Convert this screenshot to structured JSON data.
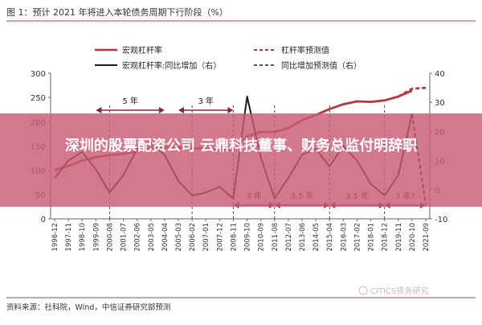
{
  "figure_title": "图 1：预计 2021 年将进入本轮债务周期下行阶段（%）",
  "headline": "深圳的股票配资公司 云鼎科技董事、财务总监付明辞职",
  "source": "资料来源：社科院，Wind，中信证券研究部预测",
  "watermark": "CITICS债务研究",
  "colors": {
    "leverage": "#b8343f",
    "yoy": "#1a1a1a",
    "banner": "#c95c74",
    "arrow": "#7a2a4a",
    "grid": "#d0d0d0"
  },
  "chart_data": {
    "type": "line",
    "title": "预计 2021 年将进入本轮债务周期下行阶段（%）",
    "x_ticks": [
      "1996-12",
      "1997-11",
      "1998-10",
      "1999-09",
      "2000-08",
      "2001-07",
      "2002-06",
      "2003-05",
      "2004-04",
      "2005-03",
      "2006-02",
      "2007-01",
      "2007-12",
      "2008-11",
      "2009-10",
      "2010-09",
      "2011-08",
      "2012-07",
      "2013-06",
      "2014-05",
      "2015-04",
      "2016-03",
      "2017-02",
      "2018-01",
      "2018-12",
      "2019-11",
      "2020-10",
      "2021-09"
    ],
    "y_left": {
      "lim": [
        0,
        300
      ],
      "ticks": [
        0,
        50,
        100,
        150,
        200,
        250,
        300
      ]
    },
    "y_right": {
      "lim": [
        -10,
        40
      ],
      "ticks": [
        -10,
        0,
        10,
        20,
        30,
        40
      ]
    },
    "legend": [
      "宏观杠杆率",
      "杠杆率预测值",
      "宏观杠杆率:同比增加（右）",
      "同比增加预测值（右）"
    ],
    "series": [
      {
        "name": "宏观杠杆率",
        "axis": "left",
        "style": "solid",
        "points": [
          [
            "1996-12",
            100
          ],
          [
            "1997-11",
            109
          ],
          [
            "1998-10",
            120
          ],
          [
            "1999-09",
            127
          ],
          [
            "2000-08",
            131
          ],
          [
            "2001-07",
            134
          ],
          [
            "2002-06",
            139
          ],
          [
            "2003-05",
            146
          ],
          [
            "2004-04",
            147
          ],
          [
            "2005-03",
            147
          ],
          [
            "2006-02",
            145
          ],
          [
            "2007-01",
            145
          ],
          [
            "2007-12",
            141
          ],
          [
            "2008-11",
            141
          ],
          [
            "2009-10",
            170
          ],
          [
            "2010-09",
            179
          ],
          [
            "2011-08",
            179
          ],
          [
            "2012-07",
            187
          ],
          [
            "2013-06",
            203
          ],
          [
            "2014-05",
            214
          ],
          [
            "2015-04",
            226
          ],
          [
            "2016-03",
            236
          ],
          [
            "2017-02",
            242
          ],
          [
            "2018-01",
            241
          ],
          [
            "2018-12",
            244
          ],
          [
            "2019-11",
            252
          ],
          [
            "2020-10",
            264
          ]
        ]
      },
      {
        "name": "杠杆率预测值",
        "axis": "left",
        "style": "dashed",
        "points": [
          [
            "2019-11",
            252
          ],
          [
            "2020-10",
            268
          ],
          [
            "2021-09",
            270
          ]
        ]
      },
      {
        "name": "宏观杠杆率:同比增加（右）",
        "axis": "right",
        "style": "solid",
        "points": [
          [
            "1996-12",
            4
          ],
          [
            "1997-11",
            10
          ],
          [
            "1998-10",
            13
          ],
          [
            "1999-09",
            7
          ],
          [
            "2000-08",
            -1
          ],
          [
            "2001-07",
            5
          ],
          [
            "2002-06",
            14
          ],
          [
            "2003-05",
            16
          ],
          [
            "2004-04",
            12
          ],
          [
            "2005-03",
            3
          ],
          [
            "2006-02",
            -2
          ],
          [
            "2007-01",
            -1
          ],
          [
            "2007-12",
            1
          ],
          [
            "2008-11",
            -3
          ],
          [
            "2009-10",
            32
          ],
          [
            "2010-09",
            11
          ],
          [
            "2011-08",
            -3
          ],
          [
            "2012-07",
            4
          ],
          [
            "2013-06",
            12
          ],
          [
            "2014-05",
            14
          ],
          [
            "2015-04",
            8
          ],
          [
            "2016-03",
            15
          ],
          [
            "2017-02",
            10
          ],
          [
            "2018-01",
            2
          ],
          [
            "2018-12",
            -2
          ],
          [
            "2019-11",
            5
          ],
          [
            "2020-10",
            26
          ]
        ]
      },
      {
        "name": "同比增加预测值（右）",
        "axis": "right",
        "style": "dashed",
        "points": [
          [
            "2020-10",
            26
          ],
          [
            "2021-09",
            -5
          ]
        ]
      }
    ],
    "cycle_annotations": [
      {
        "label": "5 年",
        "from": "1999-09",
        "to": "2004-04"
      },
      {
        "label": "3 年",
        "from": "2005-03",
        "to": "2008-11"
      },
      {
        "label": "3 年",
        "from": "2008-11",
        "to": "2011-08"
      },
      {
        "label": "3.5 年",
        "from": "2011-08",
        "to": "2015-04"
      },
      {
        "label": "3.5 年",
        "from": "2015-04",
        "to": "2018-12"
      },
      {
        "label": "3 年?",
        "from": "2018-12",
        "to": "2021-09"
      }
    ],
    "cycle_markers": [
      "2000-08",
      "2006-02",
      "2008-11",
      "2011-08",
      "2015-04",
      "2018-12"
    ],
    "grid": false,
    "legend_position": "top"
  }
}
